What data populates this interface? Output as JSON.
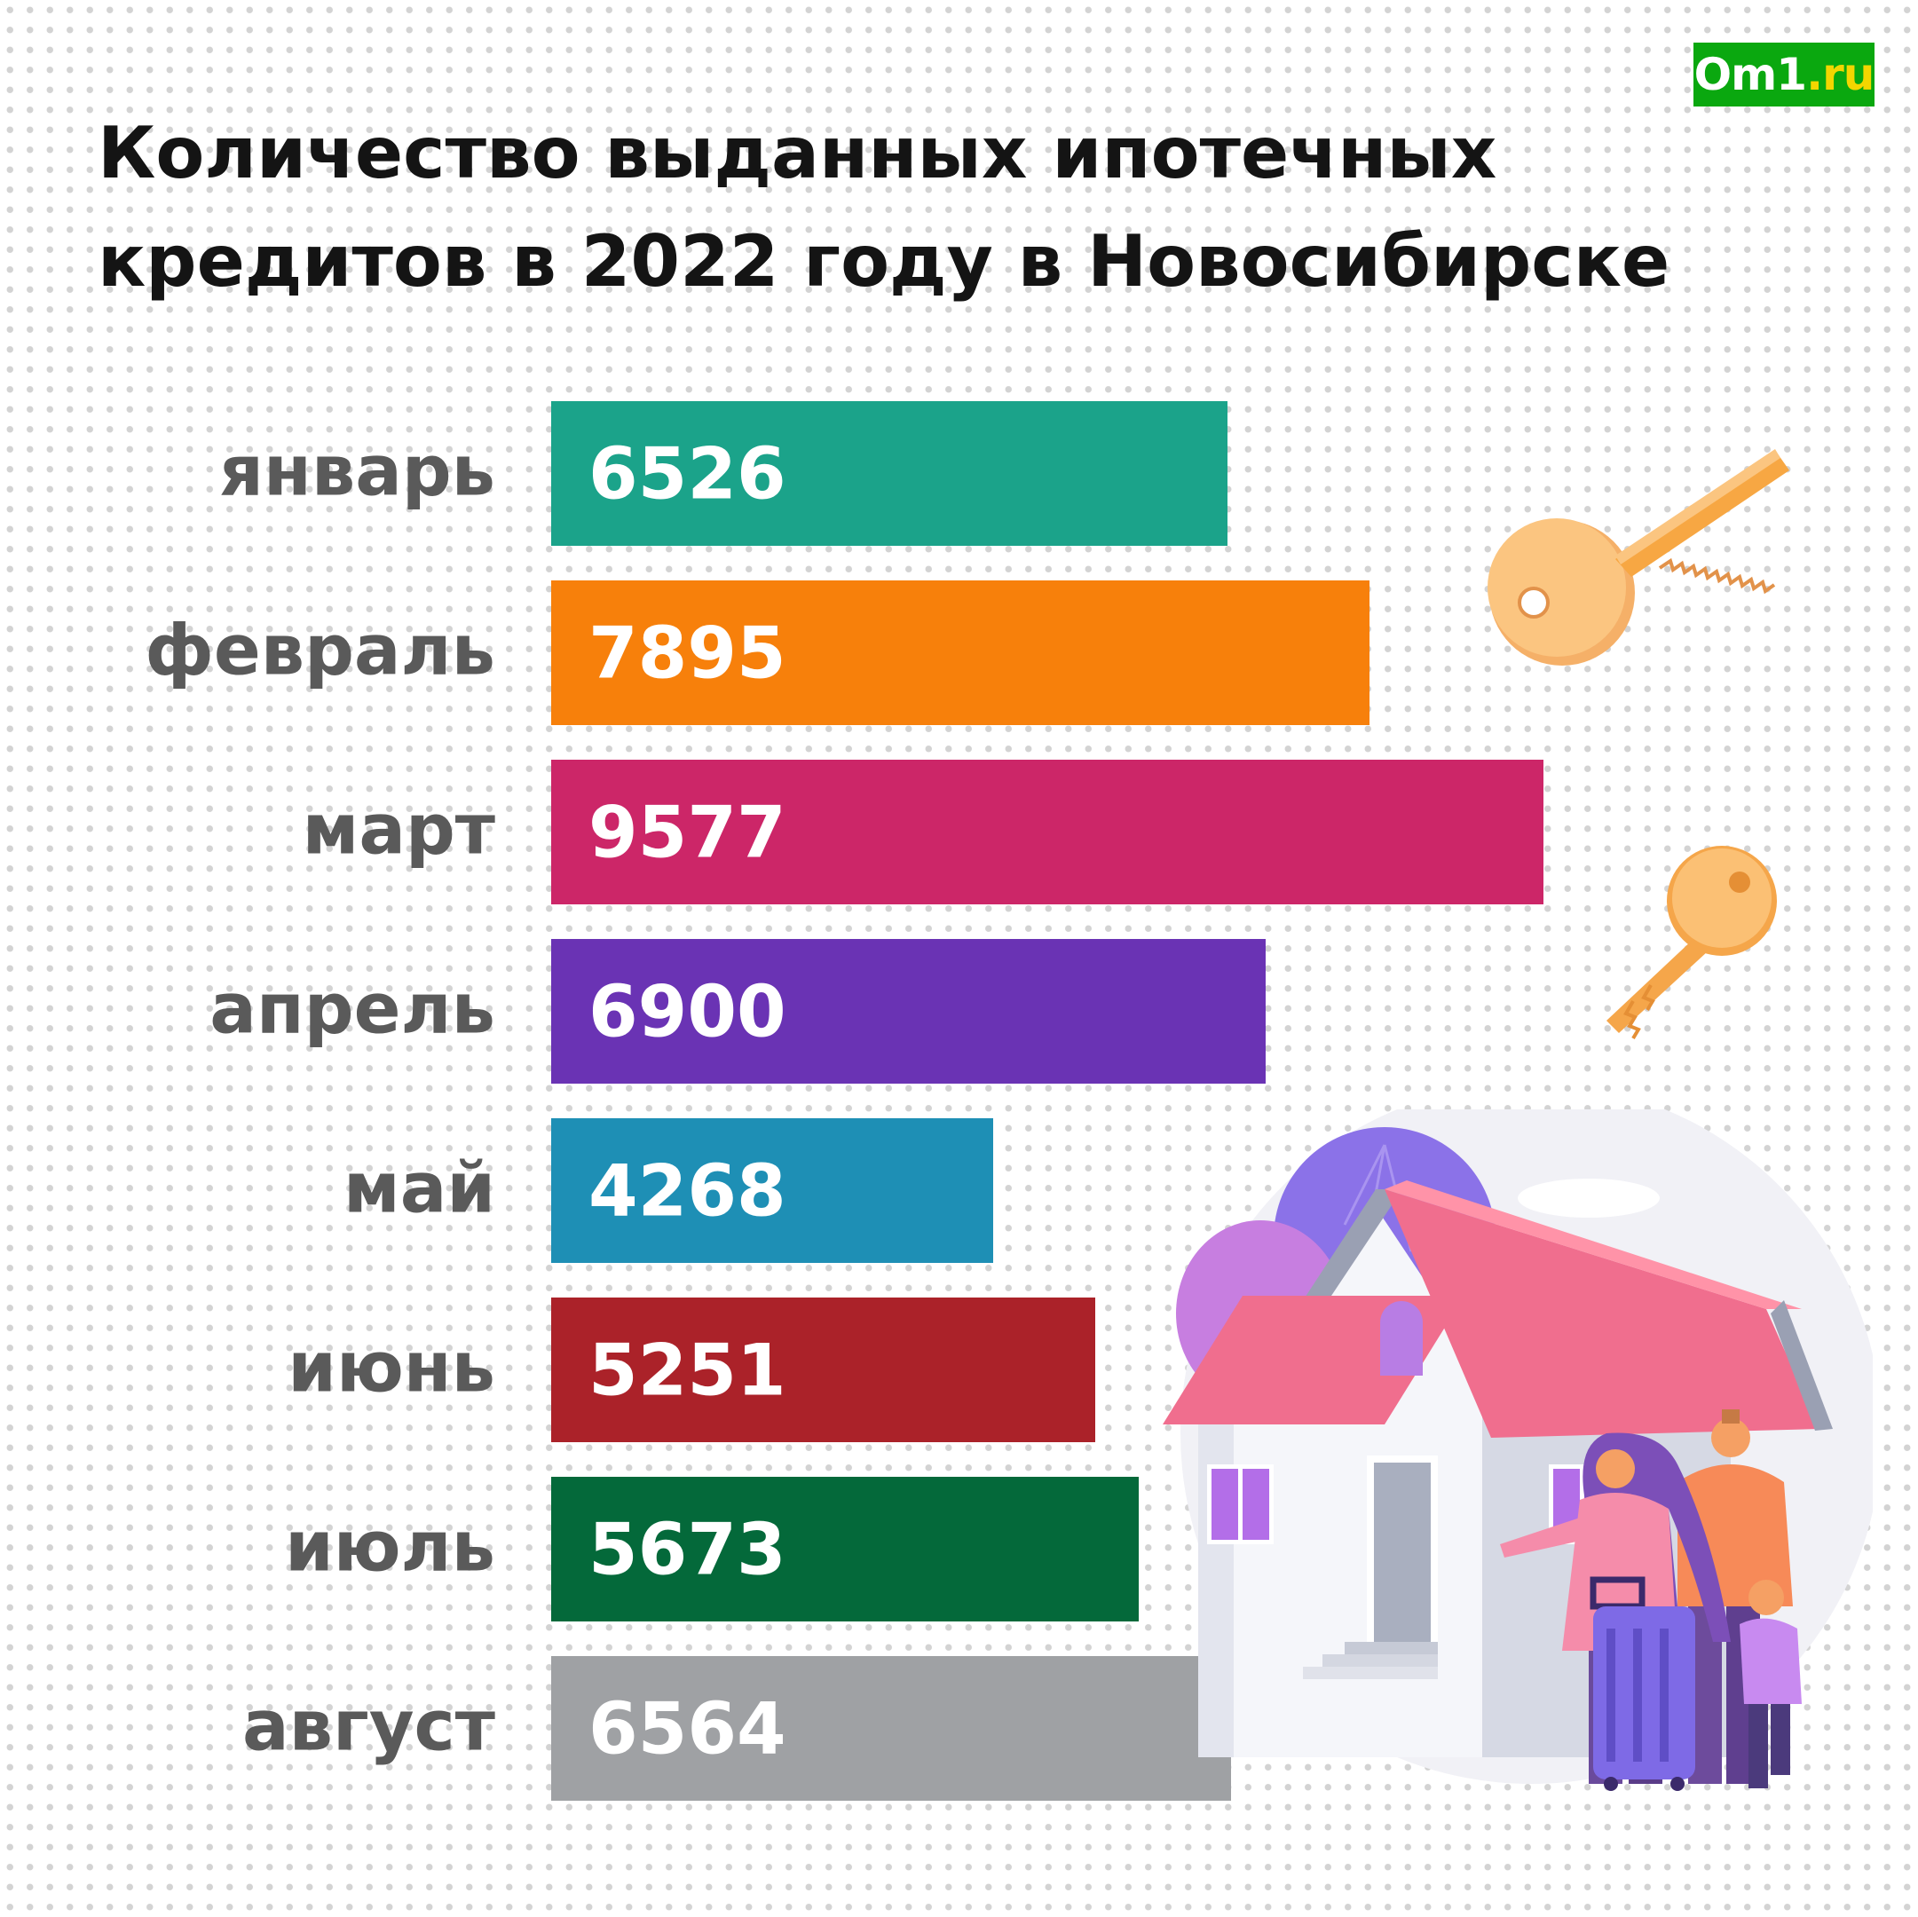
{
  "logo": {
    "text": "Om1",
    "accent": ".ru"
  },
  "title": "Количество выданных ипотечных\nкредитов в 2022 году в Новосибирске",
  "colors": {
    "background": "#ffffff",
    "dots": "#d3d3d3",
    "title": "#141414",
    "labels": "#5a5a5a",
    "bar_text": "#ffffff",
    "logo_bg": "#0aa80f",
    "logo_accent": "#f2d600"
  },
  "illustrations": [
    {
      "name": "key-icon",
      "description": "orange key"
    },
    {
      "name": "key-icon",
      "description": "small orange key"
    },
    {
      "name": "house-family-illustration",
      "description": "house with pink roof and family with suitcase"
    }
  ],
  "chart_data": {
    "type": "bar",
    "orientation": "horizontal",
    "title": "Количество выданных ипотечных кредитов в 2022 году в Новосибирске",
    "categories": [
      "январь",
      "февраль",
      "март",
      "апрель",
      "май",
      "июнь",
      "июль",
      "август"
    ],
    "values": [
      6526,
      7895,
      9577,
      6900,
      4268,
      5251,
      5673,
      6564
    ],
    "bar_colors": [
      "#1ba38a",
      "#f7800b",
      "#cc2668",
      "#6a33b4",
      "#1e8fb5",
      "#ab2229",
      "#04693a",
      "#9fa1a4"
    ],
    "value_labels": [
      "6526",
      "7895",
      "9577",
      "6900",
      "4268",
      "5251",
      "5673",
      "6564"
    ],
    "xlabel": "",
    "ylabel": "",
    "grid": false,
    "legend": "none"
  }
}
